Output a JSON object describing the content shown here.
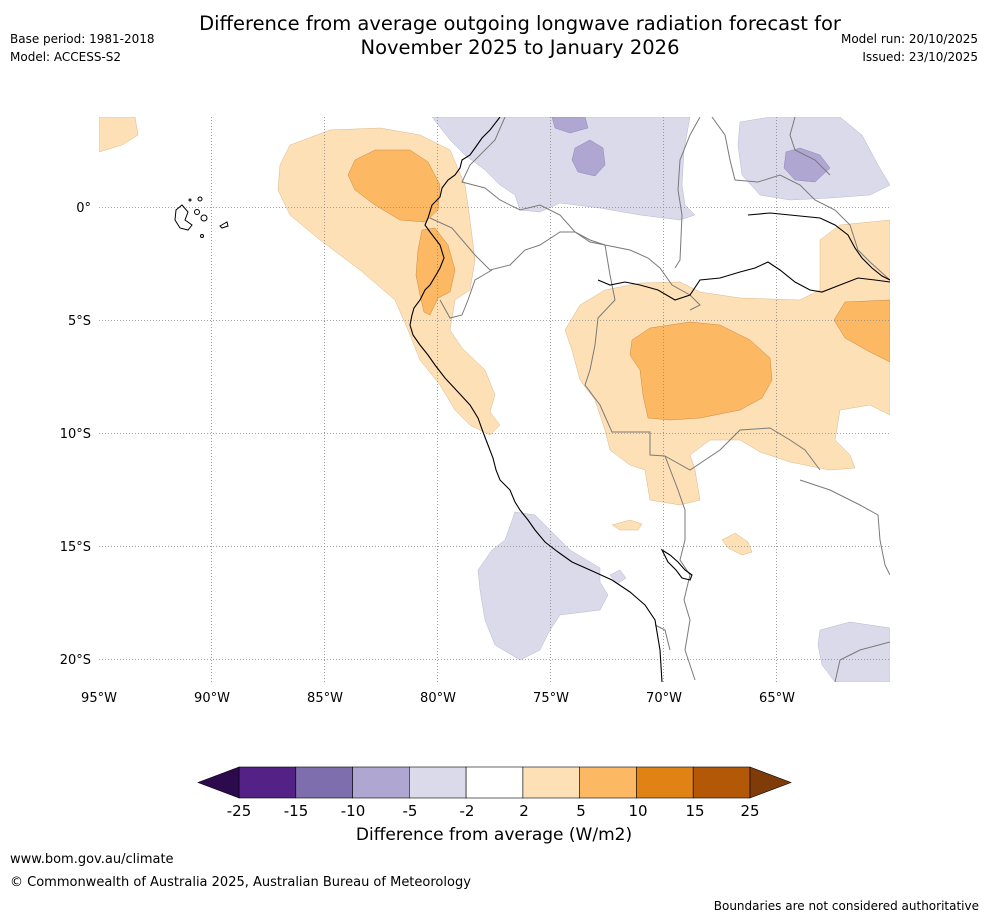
{
  "title": {
    "line1": "Difference from average outgoing longwave radiation forecast for",
    "line2": "November 2025 to January 2026"
  },
  "meta_left": {
    "base_period": "Base period: 1981-2018",
    "model": "Model: ACCESS-S2"
  },
  "meta_right": {
    "model_run": "Model run: 20/10/2025",
    "issued": "Issued: 23/10/2025"
  },
  "map": {
    "lon_labels": [
      "95°W",
      "90°W",
      "85°W",
      "80°W",
      "75°W",
      "70°W",
      "65°W"
    ],
    "lat_labels": [
      "0°",
      "5°S",
      "10°S",
      "15°S",
      "20°S"
    ]
  },
  "colorbar": {
    "tick_labels": [
      "-25",
      "-15",
      "-10",
      "-5",
      "-2",
      "2",
      "5",
      "10",
      "15",
      "25"
    ],
    "colors": {
      "below_min": "#2d0a4e",
      "bins": [
        "#542286",
        "#7e6ead",
        "#b0a6d2",
        "#dadaeb",
        "#ffffff",
        "#fee0b6",
        "#fdb863",
        "#e08214",
        "#b35806"
      ],
      "above_max": "#7f3b08"
    },
    "label": "Difference from average (W/m2)"
  },
  "footer": {
    "url": "www.bom.gov.au/climate",
    "copyright": "© Commonwealth of Australia 2025, Australian Bureau of Meteorology",
    "note": "Boundaries are not considered authoritative"
  }
}
